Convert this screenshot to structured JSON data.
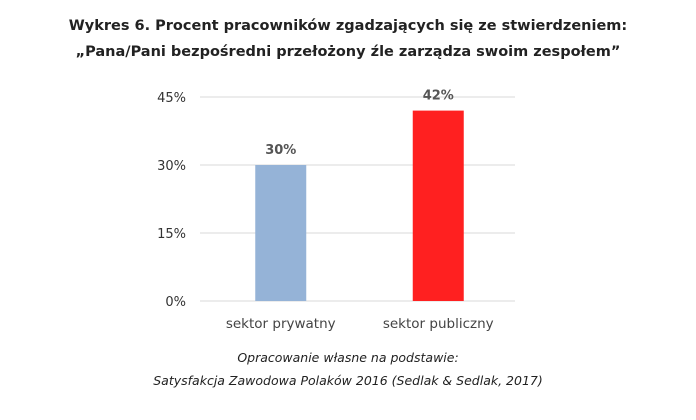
{
  "chart_data": {
    "type": "bar",
    "title": "Wykres 6. Procent pracowników zgadzających się ze stwierdzeniem:",
    "subtitle": "„Pana/Pani bezpośredni przełożony źle zarządza swoim zespołem”",
    "categories": [
      "sektor prywatny",
      "sektor publiczny"
    ],
    "values": [
      30,
      42
    ],
    "data_labels": [
      "30%",
      "42%"
    ],
    "colors": [
      "#95b3d7",
      "#ff2020"
    ],
    "yticks": [
      "0%",
      "15%",
      "30%",
      "45%"
    ],
    "ylim": [
      0,
      45
    ],
    "grid": true,
    "xlabel": "",
    "ylabel": ""
  },
  "source": {
    "line1": "Opracowanie własne na podstawie:",
    "line2": "Satysfakcja Zawodowa Polaków 2016 (Sedlak & Sedlak, 2017)"
  }
}
